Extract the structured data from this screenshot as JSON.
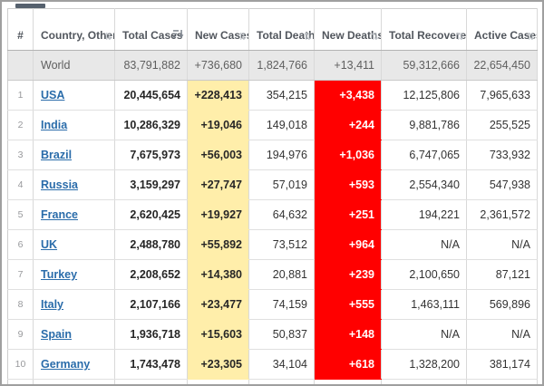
{
  "colors": {
    "link": "#2a6caa",
    "new_cases_bg": "#ffeeaa",
    "new_deaths_bg": "#ff0000",
    "new_deaths_text": "#ffffff",
    "world_row_bg": "#e8e8e8"
  },
  "icons": {
    "sort_unsorted": "⇅"
  },
  "table": {
    "columns": [
      {
        "id": "rank",
        "label": "#",
        "sortable": false,
        "sort_state": "none"
      },
      {
        "id": "country",
        "label": "Country, Other",
        "sortable": true,
        "sort_state": "none"
      },
      {
        "id": "total_cases",
        "label": "Total Cases",
        "sortable": true,
        "sort_state": "desc"
      },
      {
        "id": "new_cases",
        "label": "New Cases",
        "sortable": true,
        "sort_state": "none"
      },
      {
        "id": "total_deaths",
        "label": "Total Deaths",
        "sortable": true,
        "sort_state": "none"
      },
      {
        "id": "new_deaths",
        "label": "New Deaths",
        "sortable": true,
        "sort_state": "none"
      },
      {
        "id": "total_recovered",
        "label": "Total Recovered",
        "sortable": true,
        "sort_state": "none"
      },
      {
        "id": "active_cases",
        "label": "Active Cases",
        "sortable": true,
        "sort_state": "none"
      }
    ],
    "world_row": {
      "rank": "",
      "country": "World",
      "total_cases": "83,791,882",
      "new_cases": "+736,680",
      "total_deaths": "1,824,766",
      "new_deaths": "+13,411",
      "total_recovered": "59,312,666",
      "active_cases": "22,654,450"
    },
    "rows": [
      {
        "rank": "1",
        "country": "USA",
        "total_cases": "20,445,654",
        "new_cases": "+228,413",
        "total_deaths": "354,215",
        "new_deaths": "+3,438",
        "total_recovered": "12,125,806",
        "active_cases": "7,965,633"
      },
      {
        "rank": "2",
        "country": "India",
        "total_cases": "10,286,329",
        "new_cases": "+19,046",
        "total_deaths": "149,018",
        "new_deaths": "+244",
        "total_recovered": "9,881,786",
        "active_cases": "255,525"
      },
      {
        "rank": "3",
        "country": "Brazil",
        "total_cases": "7,675,973",
        "new_cases": "+56,003",
        "total_deaths": "194,976",
        "new_deaths": "+1,036",
        "total_recovered": "6,747,065",
        "active_cases": "733,932"
      },
      {
        "rank": "4",
        "country": "Russia",
        "total_cases": "3,159,297",
        "new_cases": "+27,747",
        "total_deaths": "57,019",
        "new_deaths": "+593",
        "total_recovered": "2,554,340",
        "active_cases": "547,938"
      },
      {
        "rank": "5",
        "country": "France",
        "total_cases": "2,620,425",
        "new_cases": "+19,927",
        "total_deaths": "64,632",
        "new_deaths": "+251",
        "total_recovered": "194,221",
        "active_cases": "2,361,572"
      },
      {
        "rank": "6",
        "country": "UK",
        "total_cases": "2,488,780",
        "new_cases": "+55,892",
        "total_deaths": "73,512",
        "new_deaths": "+964",
        "total_recovered": "N/A",
        "active_cases": "N/A"
      },
      {
        "rank": "7",
        "country": "Turkey",
        "total_cases": "2,208,652",
        "new_cases": "+14,380",
        "total_deaths": "20,881",
        "new_deaths": "+239",
        "total_recovered": "2,100,650",
        "active_cases": "87,121"
      },
      {
        "rank": "8",
        "country": "Italy",
        "total_cases": "2,107,166",
        "new_cases": "+23,477",
        "total_deaths": "74,159",
        "new_deaths": "+555",
        "total_recovered": "1,463,111",
        "active_cases": "569,896"
      },
      {
        "rank": "9",
        "country": "Spain",
        "total_cases": "1,936,718",
        "new_cases": "+15,603",
        "total_deaths": "50,837",
        "new_deaths": "+148",
        "total_recovered": "N/A",
        "active_cases": "N/A"
      },
      {
        "rank": "10",
        "country": "Germany",
        "total_cases": "1,743,478",
        "new_cases": "+23,305",
        "total_deaths": "34,104",
        "new_deaths": "+618",
        "total_recovered": "1,328,200",
        "active_cases": "381,174"
      }
    ]
  }
}
